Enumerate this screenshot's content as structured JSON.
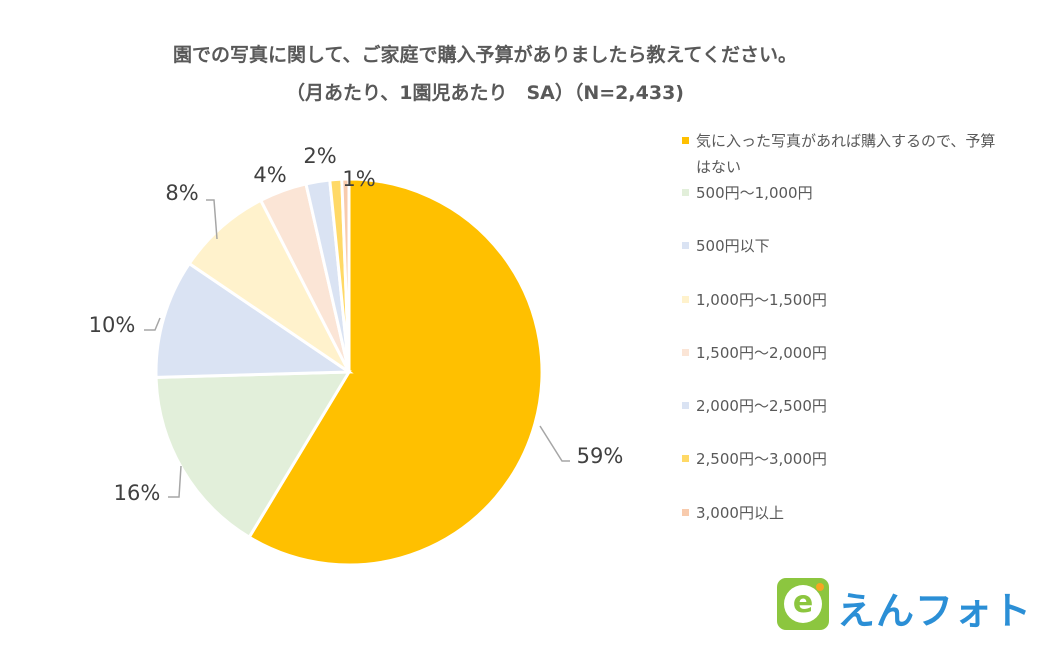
{
  "chart_data": {
    "type": "pie",
    "title": "園での写真に関して、ご家庭で購入予算がありましたら教えてください。",
    "subtitle": "（月あたり、1園児あたり　SA）（N=2,433)",
    "categories": [
      "気に入った写真があれば購入するので、予算はない",
      "500円～1,000円",
      "500円以下",
      "1,000円～1,500円",
      "1,500円～2,000円",
      "2,000円～2,500円",
      "2,500円～3,000円",
      "3,000円以上"
    ],
    "values": [
      59,
      16,
      10,
      8,
      4,
      2,
      1,
      0
    ],
    "labels": [
      "59%",
      "16%",
      "10%",
      "8%",
      "4%",
      "2%",
      "1%",
      ""
    ],
    "colors": [
      "#ffc000",
      "#e2efda",
      "#dae3f3",
      "#fff2cc",
      "#fbe5d6",
      "#dae3f3",
      "#ffd966",
      "#f8cbad"
    ],
    "legend_position": "right"
  },
  "legend_first_line": "気に入った写真があれば購入するので、予算",
  "legend_second_line": "はない",
  "logo": {
    "mark": "e",
    "text": "えんフォト"
  }
}
